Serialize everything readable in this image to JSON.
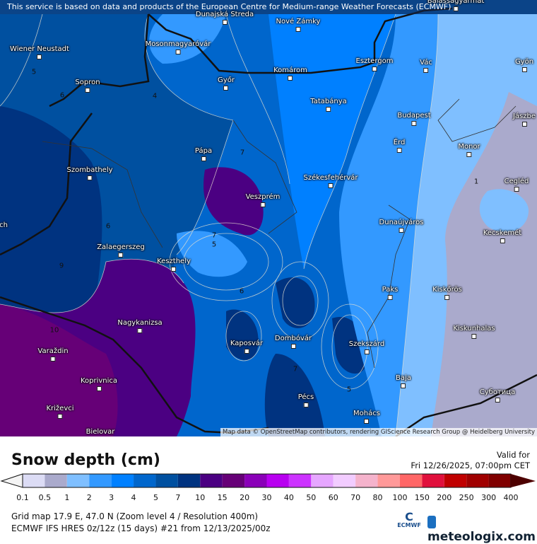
{
  "banner": "This service is based on data and products of the European Centre for Medium-range Weather Forecasts (ECMWF)",
  "map": {
    "attribution": "Map data © OpenStreetMap contributors, rendering GIScience Research Group @ Heidelberg University",
    "cities": [
      {
        "name": "Balassagyarmat"
      },
      {
        "name": "Dunajská Streda"
      },
      {
        "name": "Nové Zámky"
      },
      {
        "name": "Mosonmagyaróvár"
      },
      {
        "name": "Wiener Neustadt"
      },
      {
        "name": "Komárom"
      },
      {
        "name": "Esztergom"
      },
      {
        "name": "Vác"
      },
      {
        "name": "Gyön"
      },
      {
        "name": "Sopron"
      },
      {
        "name": "Győr"
      },
      {
        "name": "Tatabánya"
      },
      {
        "name": "Budapest"
      },
      {
        "name": "Jászbe"
      },
      {
        "name": "Érd"
      },
      {
        "name": "Monor"
      },
      {
        "name": "Pápa"
      },
      {
        "name": "Szombathely"
      },
      {
        "name": "Székesfehérvár"
      },
      {
        "name": "Cegléd"
      },
      {
        "name": "Veszprém"
      },
      {
        "name": "Dunaújváros"
      },
      {
        "name": "Kecskemét"
      },
      {
        "name": "Zalaegerszeg"
      },
      {
        "name": "Keszthely"
      },
      {
        "name": "Paks"
      },
      {
        "name": "Kiskőrös"
      },
      {
        "name": "Nagykanizsa"
      },
      {
        "name": "Kiskunhalas"
      },
      {
        "name": "Kaposvár"
      },
      {
        "name": "Dombóvár"
      },
      {
        "name": "Szekszárd"
      },
      {
        "name": "Varaždin"
      },
      {
        "name": "Koprivnica"
      },
      {
        "name": "Baja"
      },
      {
        "name": "Pécs"
      },
      {
        "name": "Суботица"
      },
      {
        "name": "Mohács"
      },
      {
        "name": "Križevci"
      },
      {
        "name": "Bielovar"
      },
      {
        "name": "ch"
      }
    ],
    "contour_labels": [
      "5",
      "6",
      "4",
      "7",
      "1",
      "6",
      "7",
      "5",
      "9",
      "6",
      "10",
      "7",
      "5"
    ]
  },
  "legend": {
    "title": "Snow depth (cm)",
    "valid_label": "Valid for",
    "valid_time": "Fri 12/26/2025, 07:00pm CET",
    "ticks": [
      "0.1",
      "0.5",
      "1",
      "2",
      "3",
      "4",
      "5",
      "7",
      "10",
      "15",
      "20",
      "30",
      "40",
      "50",
      "60",
      "70",
      "80",
      "100",
      "150",
      "200",
      "250",
      "300",
      "400"
    ],
    "below_color": "#f4f4f4",
    "colors": [
      "#dcdcf5",
      "#aaaacc",
      "#7fbfff",
      "#3399ff",
      "#0080ff",
      "#0066cc",
      "#0050a0",
      "#003380",
      "#4b0082",
      "#660077",
      "#8a00b8",
      "#b800f0",
      "#cc33ff",
      "#e6a6ff",
      "#f2ccff",
      "#f5b3cc",
      "#ff9999",
      "#ff6666",
      "#e0103c",
      "#c00000",
      "#a00000",
      "#800000"
    ],
    "above_color": "#4d0000"
  },
  "info": {
    "grid": "Grid map 17.9 E, 47.0 N (Zoom level 4 / Resolution 400m)",
    "model": "ECMWF IFS HRES 0z/12z (15 days) #21 from  12/13/2025/00z"
  },
  "logos": {
    "ecmwf": "ECMWF",
    "meteologix": "meteologix.com"
  }
}
